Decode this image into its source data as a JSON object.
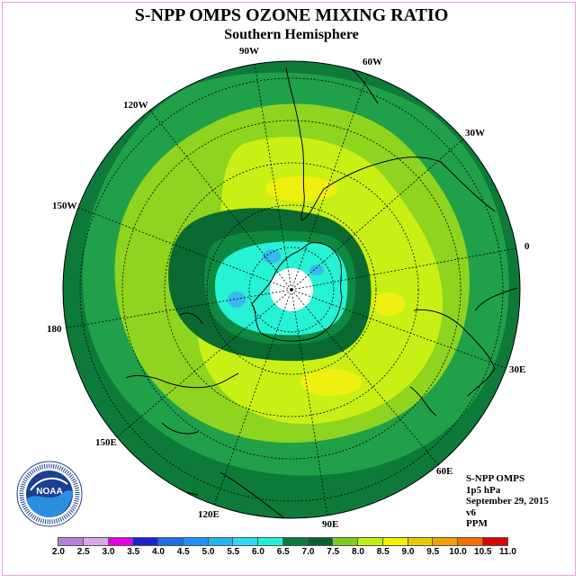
{
  "title": "S-NPP OMPS OZONE MIXING RATIO",
  "subtitle": "Southern Hemisphere",
  "longitude_labels": {
    "w90": "90W",
    "w60": "60W",
    "w30": "30W",
    "w120": "120W",
    "w150": "150W",
    "zero": "0",
    "lon180": "180",
    "e30": "30E",
    "e150": "150E",
    "e60": "60E",
    "e120": "120E",
    "e90": "90E"
  },
  "info": {
    "instrument": "S-NPP OMPS",
    "level": "1p5 hPa",
    "date": "September 29, 2015",
    "version": "v6",
    "units": "PPM"
  },
  "logo": {
    "text": "NOAA",
    "ring_text": "NATIONAL OCEANIC AND ATMOSPHERIC ADMINISTRATION U.S. DEPARTMENT OF COMMERCE"
  },
  "colorbar": {
    "labels": [
      "2.0",
      "2.5",
      "3.0",
      "3.5",
      "4.0",
      "4.5",
      "5.0",
      "5.5",
      "6.0",
      "6.5",
      "7.0",
      "7.5",
      "8.0",
      "8.5",
      "9.0",
      "9.5",
      "10.0",
      "10.5",
      "11.0"
    ],
    "colors": [
      "#b27fd9",
      "#d8a8e8",
      "#e300e3",
      "#2020d0",
      "#1e6ee6",
      "#1e90ff",
      "#20b4f0",
      "#30d8f8",
      "#20f0d8",
      "#0a7a3a",
      "#076030",
      "#7fcc20",
      "#c0f010",
      "#f0f000",
      "#e8c800",
      "#f0a000",
      "#f07000",
      "#e00000",
      "#804020"
    ]
  },
  "map_colors": {
    "outer": "#0d7a3a",
    "band_green": "#21a04a",
    "yellowgreen": "#8fd41e",
    "lime": "#c8f014",
    "yellow": "#f0f010",
    "darkring": "#0a6a32",
    "cyan": "#26f2d4",
    "blue": "#3ab8f0",
    "pole": "#ffffff"
  }
}
